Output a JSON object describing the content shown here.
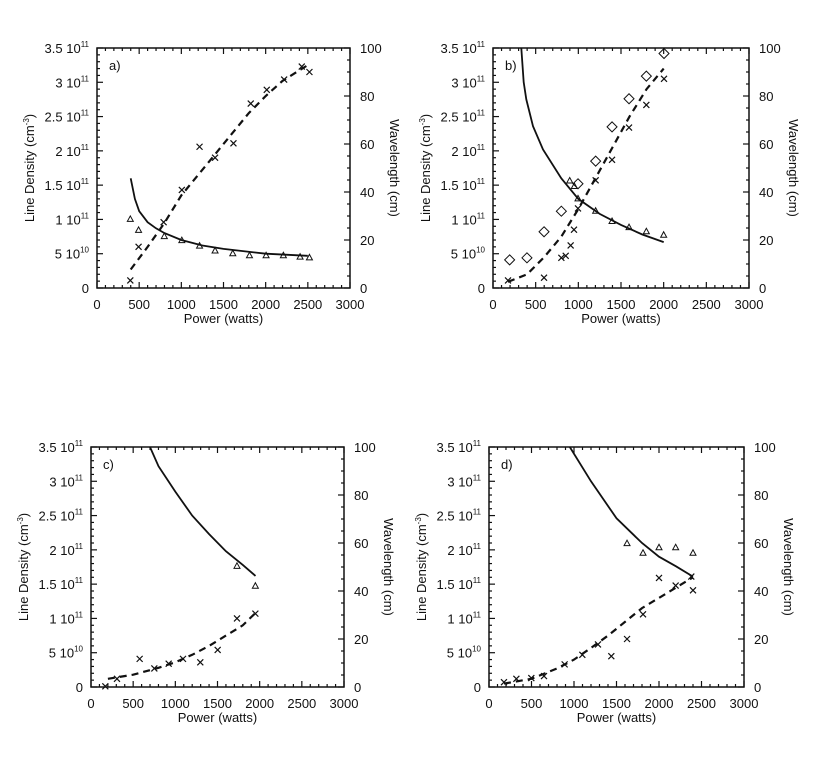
{
  "chart_data": {
    "type": "scatter",
    "y_unit_note": "series values expressed in left-axis units (10^11 cm^-3); right axis Wavelength 0-100 cm maps to 0-3.5",
    "panels": [
      {
        "label": "a)",
        "xlabel": "Power (watts)",
        "ylabel": {
          "text": "Line Density (cm",
          "sup": "-3",
          "close": ")"
        },
        "y2label": "Wavelength (cm)",
        "xlim": [
          0,
          3000
        ],
        "ylim": [
          0,
          3.5
        ],
        "y2lim": [
          0,
          100
        ],
        "series": [
          {
            "name": "crosses",
            "marker": "cross",
            "points": [
              [
                395,
                0.11
              ],
              [
                493,
                0.6
              ],
              [
                790,
                0.96
              ],
              [
                1006,
                1.43
              ],
              [
                1216,
                2.06
              ],
              [
                1400,
                1.9
              ],
              [
                1618,
                2.11
              ],
              [
                1823,
                2.69
              ],
              [
                2013,
                2.89
              ],
              [
                2219,
                3.04
              ],
              [
                2428,
                3.23
              ],
              [
                2519,
                3.15
              ]
            ]
          },
          {
            "name": "triangles",
            "marker": "triangle",
            "points": [
              [
                395,
                1.0
              ],
              [
                493,
                0.84
              ],
              [
                798,
                0.75
              ],
              [
                1006,
                0.69
              ],
              [
                1216,
                0.61
              ],
              [
                1400,
                0.54
              ],
              [
                1610,
                0.5
              ],
              [
                1808,
                0.47
              ],
              [
                2005,
                0.47
              ],
              [
                2210,
                0.47
              ],
              [
                2408,
                0.45
              ],
              [
                2519,
                0.44
              ]
            ]
          },
          {
            "name": "solid fit",
            "line": "solid",
            "points": [
              [
                400,
                1.6
              ],
              [
                450,
                1.3
              ],
              [
                500,
                1.12
              ],
              [
                600,
                0.96
              ],
              [
                700,
                0.87
              ],
              [
                800,
                0.8
              ],
              [
                1000,
                0.7
              ],
              [
                1250,
                0.62
              ],
              [
                1500,
                0.57
              ],
              [
                2000,
                0.5
              ],
              [
                2500,
                0.47
              ]
            ]
          },
          {
            "name": "dashed fit",
            "line": "dashed",
            "points": [
              [
                400,
                0.27
              ],
              [
                600,
                0.6
              ],
              [
                800,
                0.95
              ],
              [
                1000,
                1.35
              ],
              [
                1200,
                1.65
              ],
              [
                1400,
                1.95
              ],
              [
                1600,
                2.25
              ],
              [
                1800,
                2.55
              ],
              [
                2000,
                2.8
              ],
              [
                2200,
                3.02
              ],
              [
                2500,
                3.25
              ]
            ]
          }
        ]
      },
      {
        "label": "b)",
        "xlabel": "Power (watts)",
        "ylabel": {
          "text": "Line Density (cm",
          "sup": "-3",
          "close": ")"
        },
        "y2label": "Wavelength (cm)",
        "xlim": [
          0,
          3000
        ],
        "ylim": [
          0,
          3.5
        ],
        "y2lim": [
          0,
          100
        ],
        "series": [
          {
            "name": "diamonds",
            "marker": "diamond",
            "points": [
              [
                195,
                0.41
              ],
              [
                398,
                0.44
              ],
              [
                598,
                0.82
              ],
              [
                801,
                1.12
              ],
              [
                996,
                1.52
              ],
              [
                1203,
                1.85
              ],
              [
                1395,
                2.35
              ],
              [
                1594,
                2.76
              ],
              [
                1797,
                3.09
              ],
              [
                2004,
                3.42
              ]
            ]
          },
          {
            "name": "crosses",
            "marker": "cross",
            "points": [
              [
                176,
                0.11
              ],
              [
                598,
                0.15
              ],
              [
                801,
                0.44
              ],
              [
                852,
                0.47
              ],
              [
                910,
                0.62
              ],
              [
                949,
                0.85
              ],
              [
                996,
                1.16
              ],
              [
                1203,
                1.57
              ],
              [
                1395,
                1.87
              ],
              [
                1594,
                2.34
              ],
              [
                1797,
                2.67
              ],
              [
                2004,
                3.05
              ]
            ]
          },
          {
            "name": "triangles",
            "marker": "triangle",
            "points": [
              [
                899,
                1.56
              ],
              [
                953,
                1.48
              ],
              [
                996,
                1.3
              ],
              [
                1203,
                1.12
              ],
              [
                1395,
                0.97
              ],
              [
                1594,
                0.88
              ],
              [
                1797,
                0.82
              ],
              [
                2000,
                0.77
              ]
            ]
          },
          {
            "name": "solid fit",
            "line": "solid",
            "points": [
              [
                332,
                3.5
              ],
              [
                360,
                3.0
              ],
              [
                390,
                2.75
              ],
              [
                469,
                2.36
              ],
              [
                586,
                2.02
              ],
              [
                800,
                1.6
              ],
              [
                1000,
                1.3
              ],
              [
                1250,
                1.08
              ],
              [
                1500,
                0.92
              ],
              [
                1750,
                0.78
              ],
              [
                2000,
                0.67
              ]
            ]
          },
          {
            "name": "dashed fit",
            "line": "dashed",
            "points": [
              [
                176,
                0.09
              ],
              [
                400,
                0.2
              ],
              [
                600,
                0.45
              ],
              [
                800,
                0.75
              ],
              [
                1000,
                1.15
              ],
              [
                1200,
                1.6
              ],
              [
                1400,
                2.05
              ],
              [
                1600,
                2.5
              ],
              [
                1800,
                2.9
              ],
              [
                2000,
                3.2
              ]
            ]
          }
        ]
      },
      {
        "label": "c)",
        "xlabel": "Power (watts)",
        "ylabel": {
          "text": "Line Density (cm",
          "sup": "-3",
          "close": ")"
        },
        "y2label": "Wavelength (cm)",
        "xlim": [
          0,
          3000
        ],
        "ylim": [
          0,
          3.5
        ],
        "y2lim": [
          0,
          100
        ],
        "series": [
          {
            "name": "triangles",
            "marker": "triangle",
            "points": [
              [
                1731,
                1.76
              ],
              [
                1949,
                1.47
              ]
            ]
          },
          {
            "name": "crosses",
            "marker": "cross",
            "points": [
              [
                170,
                0.01
              ],
              [
                308,
                0.12
              ],
              [
                577,
                0.41
              ],
              [
                751,
                0.27
              ],
              [
                921,
                0.34
              ],
              [
                1091,
                0.41
              ],
              [
                1296,
                0.36
              ],
              [
                1502,
                0.54
              ],
              [
                1731,
                1.0
              ],
              [
                1949,
                1.07
              ]
            ]
          },
          {
            "name": "solid fit",
            "line": "solid",
            "points": [
              [
                700,
                3.5
              ],
              [
                800,
                3.22
              ],
              [
                1000,
                2.85
              ],
              [
                1200,
                2.5
              ],
              [
                1400,
                2.23
              ],
              [
                1600,
                1.98
              ],
              [
                1800,
                1.78
              ],
              [
                1950,
                1.62
              ]
            ]
          },
          {
            "name": "dashed fit",
            "line": "dashed",
            "points": [
              [
                200,
                0.12
              ],
              [
                500,
                0.18
              ],
              [
                800,
                0.28
              ],
              [
                1000,
                0.36
              ],
              [
                1200,
                0.47
              ],
              [
                1400,
                0.6
              ],
              [
                1600,
                0.75
              ],
              [
                1800,
                0.9
              ],
              [
                1950,
                1.08
              ]
            ]
          }
        ]
      },
      {
        "label": "d)",
        "xlabel": "Power (watts)",
        "ylabel": {
          "text": "Line Density (cm",
          "sup": "-3",
          "close": ")"
        },
        "y2label": "Wavelength (cm)",
        "xlim": [
          0,
          3000
        ],
        "ylim": [
          0,
          3.5
        ],
        "y2lim": [
          0,
          100
        ],
        "series": [
          {
            "name": "triangles",
            "marker": "triangle",
            "points": [
              [
                1624,
                2.09
              ],
              [
                1812,
                1.95
              ],
              [
                2000,
                2.03
              ],
              [
                2196,
                2.03
              ],
              [
                2400,
                1.95
              ]
            ]
          },
          {
            "name": "crosses",
            "marker": "cross",
            "points": [
              [
                176,
                0.07
              ],
              [
                322,
                0.12
              ],
              [
                498,
                0.13
              ],
              [
                647,
                0.16
              ],
              [
                890,
                0.33
              ],
              [
                1098,
                0.47
              ],
              [
                1282,
                0.62
              ],
              [
                1439,
                0.45
              ],
              [
                1624,
                0.7
              ],
              [
                1812,
                1.06
              ],
              [
                2000,
                1.59
              ],
              [
                2196,
                1.48
              ],
              [
                2380,
                1.61
              ],
              [
                2400,
                1.41
              ]
            ]
          },
          {
            "name": "solid fit",
            "line": "solid",
            "points": [
              [
                950,
                3.5
              ],
              [
                1200,
                3.0
              ],
              [
                1500,
                2.46
              ],
              [
                1800,
                2.1
              ],
              [
                2000,
                1.9
              ],
              [
                2200,
                1.76
              ],
              [
                2400,
                1.61
              ]
            ]
          },
          {
            "name": "dashed fit",
            "line": "dashed",
            "points": [
              [
                176,
                0.05
              ],
              [
                500,
                0.12
              ],
              [
                800,
                0.27
              ],
              [
                1000,
                0.4
              ],
              [
                1200,
                0.57
              ],
              [
                1400,
                0.75
              ],
              [
                1600,
                0.95
              ],
              [
                1800,
                1.15
              ],
              [
                2000,
                1.3
              ],
              [
                2200,
                1.45
              ],
              [
                2400,
                1.6
              ]
            ]
          }
        ]
      }
    ],
    "x_ticks": [
      "0",
      "500",
      "1000",
      "1500",
      "2000",
      "2500",
      "3000"
    ],
    "x_tick_values": [
      0,
      500,
      1000,
      1500,
      2000,
      2500,
      3000
    ],
    "y_ticks": [
      {
        "value": 0,
        "mantissa": "0",
        "exp": ""
      },
      {
        "value": 0.5,
        "mantissa": "5 10",
        "exp": "10"
      },
      {
        "value": 1.0,
        "mantissa": "1 10",
        "exp": "11"
      },
      {
        "value": 1.5,
        "mantissa": "1.5 10",
        "exp": "11"
      },
      {
        "value": 2.0,
        "mantissa": "2 10",
        "exp": "11"
      },
      {
        "value": 2.5,
        "mantissa": "2.5 10",
        "exp": "11"
      },
      {
        "value": 3.0,
        "mantissa": "3 10",
        "exp": "11"
      },
      {
        "value": 3.5,
        "mantissa": "3.5 10",
        "exp": "11"
      }
    ],
    "y2_ticks": [
      "0",
      "20",
      "40",
      "60",
      "80",
      "100"
    ],
    "y2_tick_values": [
      0,
      20,
      40,
      60,
      80,
      100
    ],
    "grid": false,
    "colors": {
      "ink": "#111111",
      "background": "#ffffff"
    }
  }
}
